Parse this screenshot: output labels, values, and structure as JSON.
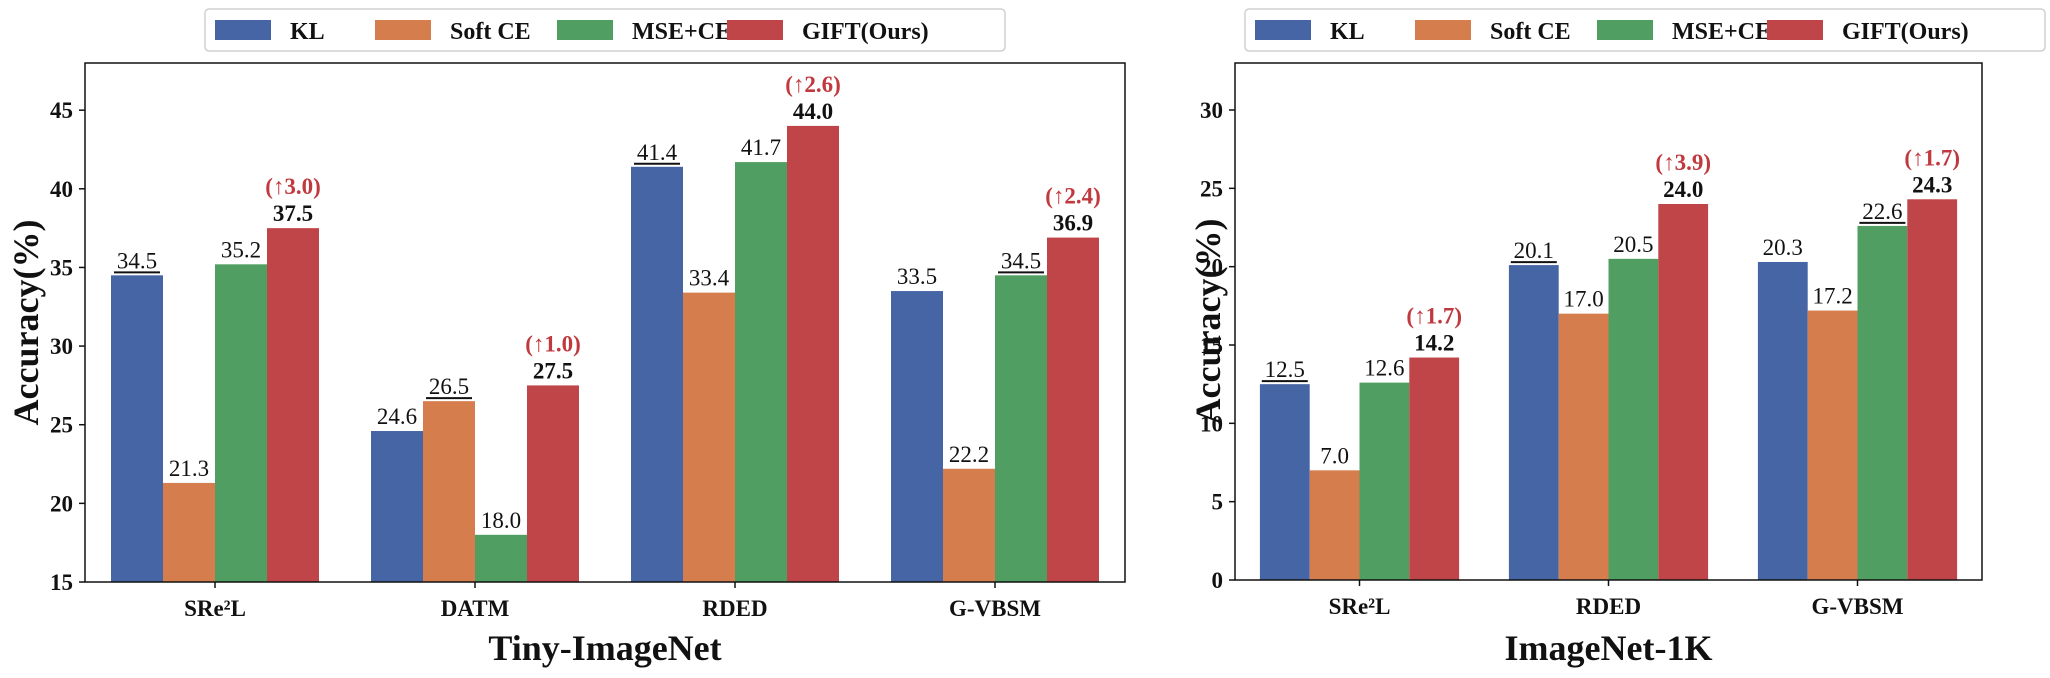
{
  "chart_data": [
    {
      "type": "bar",
      "title": "",
      "xlabel": "Tiny-ImageNet",
      "ylabel": "Accuracy(%)",
      "ylim": [
        15,
        48
      ],
      "yticks": [
        "15",
        "20",
        "25",
        "30",
        "35",
        "40",
        "45"
      ],
      "grid": false,
      "legend_position": "top",
      "categories": [
        "SRe²L",
        "DATM",
        "RDED",
        "G-VBSM"
      ],
      "series": [
        {
          "name": "KL",
          "color": "#4565a5",
          "values": [
            34.5,
            24.6,
            41.4,
            33.5
          ],
          "labels": [
            "34.5",
            "24.6",
            "41.4",
            "33.5"
          ]
        },
        {
          "name": "Soft CE",
          "color": "#d67d4e",
          "values": [
            21.3,
            26.5,
            33.4,
            22.2
          ],
          "labels": [
            "21.3",
            "26.5",
            "33.4",
            "22.2"
          ]
        },
        {
          "name": "MSE+CE",
          "color": "#519e62",
          "values": [
            35.2,
            18.0,
            41.7,
            34.5
          ],
          "labels": [
            "35.2",
            "18.0",
            "41.7",
            "34.5"
          ]
        },
        {
          "name": "GIFT(Ours)",
          "color": "#bf4549",
          "values": [
            37.5,
            27.5,
            44.0,
            36.9
          ],
          "labels": [
            "37.5",
            "27.5",
            "44.0",
            "36.9"
          ]
        }
      ],
      "underlined": [
        [
          0,
          0
        ],
        [
          1,
          1
        ],
        [
          0,
          2
        ],
        [
          2,
          3
        ]
      ],
      "improvements": [
        "(↑3.0)",
        "(↑1.0)",
        "(↑2.6)",
        "(↑2.4)"
      ]
    },
    {
      "type": "bar",
      "title": "",
      "xlabel": "ImageNet-1K",
      "ylabel": "Accuracy(%)",
      "ylim": [
        0,
        33
      ],
      "yticks": [
        "0",
        "5",
        "10",
        "15",
        "20",
        "25",
        "30"
      ],
      "grid": false,
      "legend_position": "top",
      "categories": [
        "SRe²L",
        "RDED",
        "G-VBSM"
      ],
      "series": [
        {
          "name": "KL",
          "color": "#4565a5",
          "values": [
            12.5,
            20.1,
            20.3
          ],
          "labels": [
            "12.5",
            "20.1",
            "20.3"
          ]
        },
        {
          "name": "Soft CE",
          "color": "#d67d4e",
          "values": [
            7.0,
            17.0,
            17.2
          ],
          "labels": [
            "7.0",
            "17.0",
            "17.2"
          ]
        },
        {
          "name": "MSE+CE",
          "color": "#519e62",
          "values": [
            12.6,
            20.5,
            22.6
          ],
          "labels": [
            "12.6",
            "20.5",
            "22.6"
          ]
        },
        {
          "name": "GIFT(Ours)",
          "color": "#bf4549",
          "values": [
            14.2,
            24.0,
            24.3
          ],
          "labels": [
            "14.2",
            "24.0",
            "24.3"
          ]
        }
      ],
      "underlined": [
        [
          0,
          0
        ],
        [
          0,
          1
        ],
        [
          2,
          2
        ]
      ],
      "improvements": [
        "(↑1.7)",
        "(↑3.9)",
        "(↑1.7)"
      ]
    }
  ]
}
